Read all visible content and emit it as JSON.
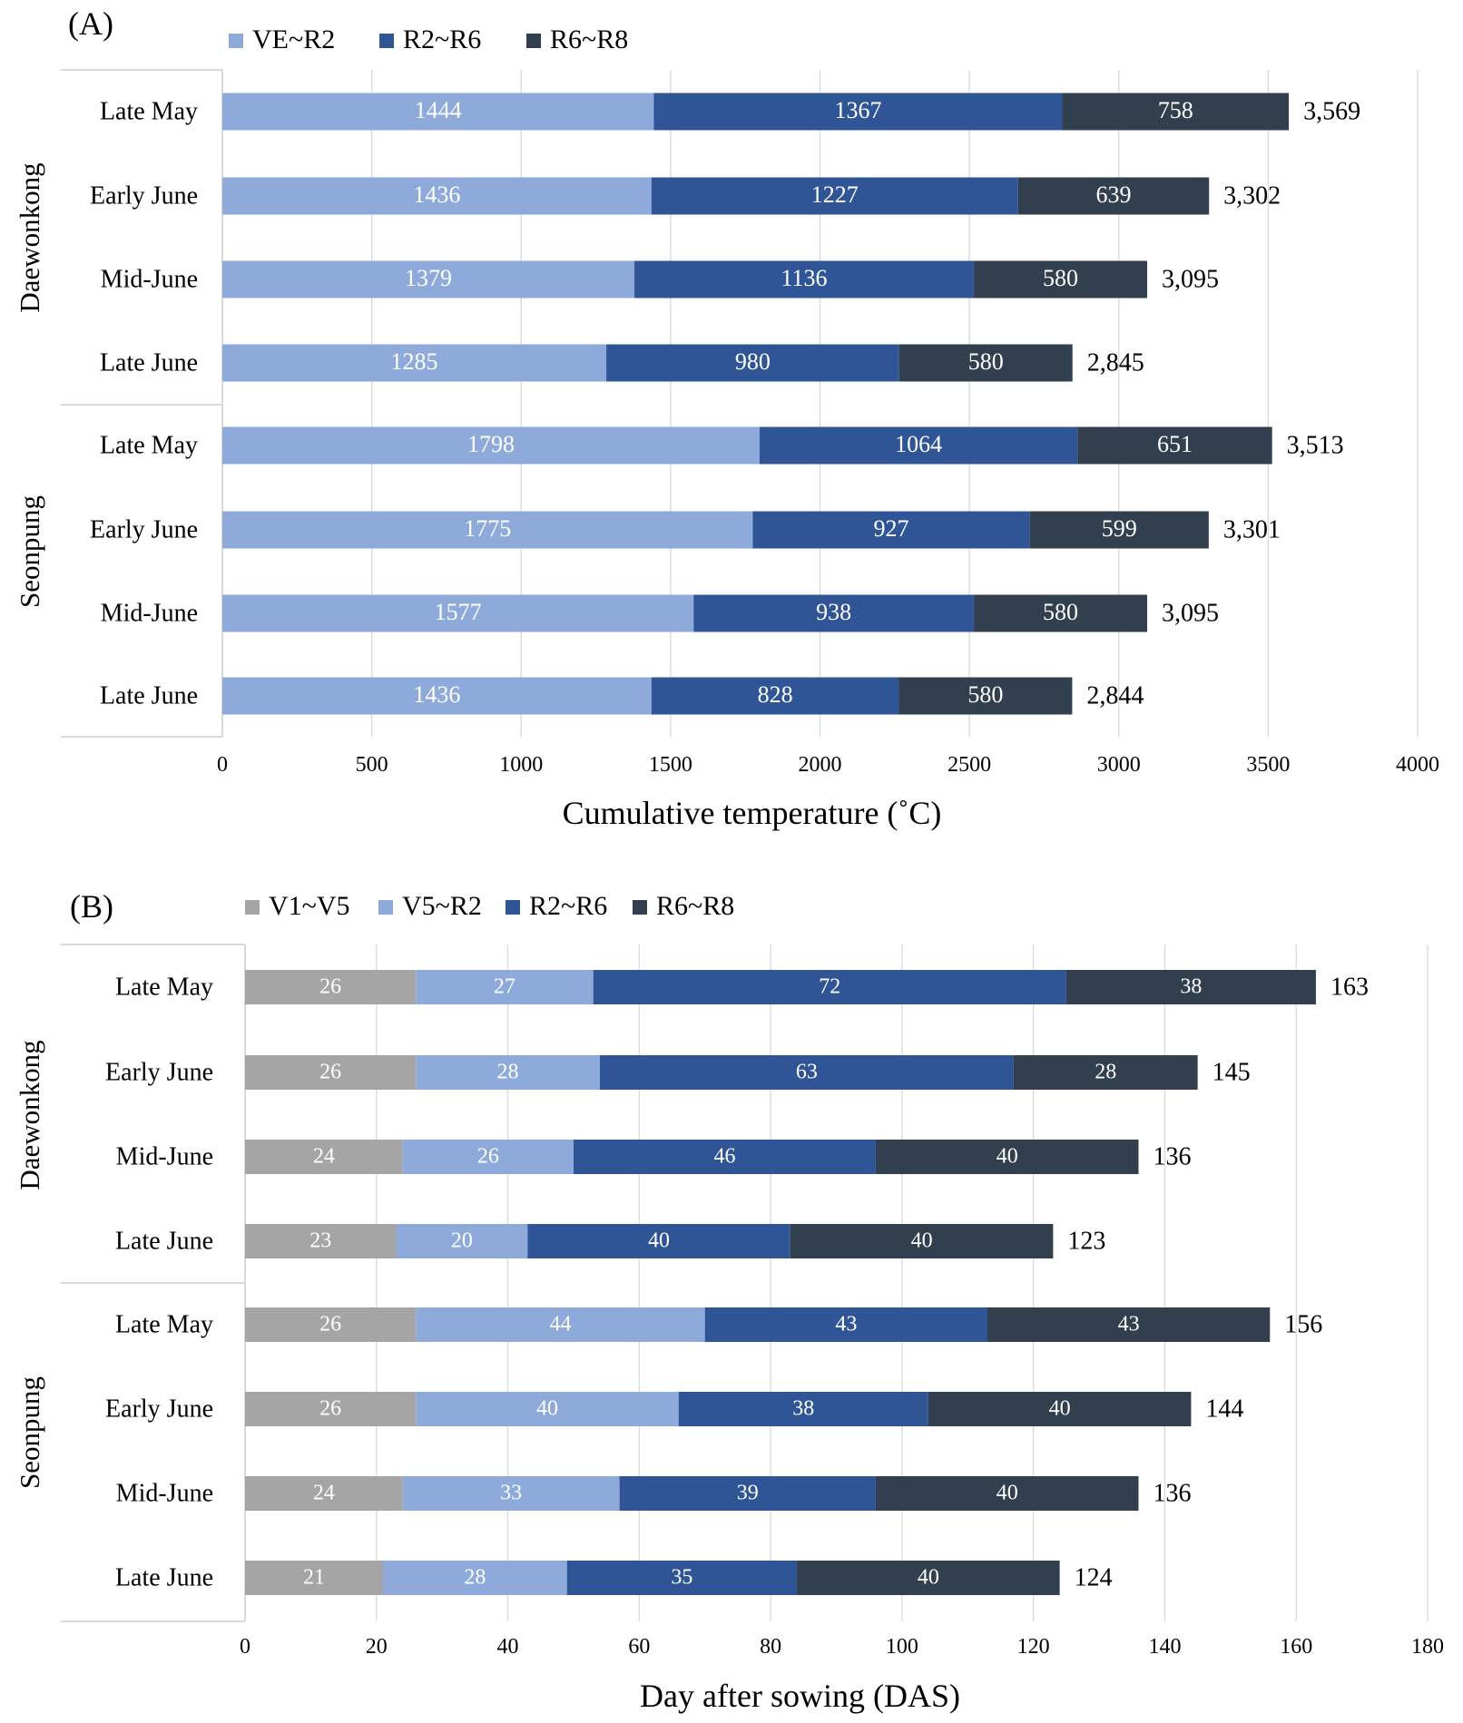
{
  "colors": {
    "VE~R2": "#8eaadb",
    "V1~V5": "#a5a5a5",
    "V5~R2": "#8eaadb",
    "R2~R6": "#2f5597",
    "R6~R8": "#323f4f",
    "grid": "#d9d9d9",
    "frame": "#d9d9d9"
  },
  "chart_data": [
    {
      "type": "bar",
      "orientation": "horizontal",
      "stacked": true,
      "panel_label": "(A)",
      "xlabel": "Cumulative temperature (˚C)",
      "xlim": [
        0,
        4000
      ],
      "x_ticks": [
        "0",
        "500",
        "1000",
        "1500",
        "2000",
        "2500",
        "3000",
        "3500",
        "4000"
      ],
      "grid": "vertical",
      "legend_position": "top-left",
      "groups": [
        {
          "name": "Daewonkong",
          "categories": [
            "Late May",
            "Early June",
            "Mid-June",
            "Late June"
          ]
        },
        {
          "name": "Seonpung",
          "categories": [
            "Late May",
            "Early June",
            "Mid-June",
            "Late June"
          ]
        }
      ],
      "series": [
        {
          "name": "VE~R2",
          "values": [
            1444,
            1436,
            1379,
            1285,
            1798,
            1775,
            1577,
            1436
          ]
        },
        {
          "name": "R2~R6",
          "values": [
            1367,
            1227,
            1136,
            980,
            1064,
            927,
            938,
            828
          ]
        },
        {
          "name": "R6~R8",
          "values": [
            758,
            639,
            580,
            580,
            651,
            599,
            580,
            580
          ]
        }
      ],
      "totals": [
        "3,569",
        "3,302",
        "3,095",
        "2,845",
        "3,513",
        "3,301",
        "3,095",
        "2,844"
      ]
    },
    {
      "type": "bar",
      "orientation": "horizontal",
      "stacked": true,
      "panel_label": "(B)",
      "xlabel": "Day after sowing (DAS)",
      "xlim": [
        0,
        180
      ],
      "x_ticks": [
        "0",
        "20",
        "40",
        "60",
        "80",
        "100",
        "120",
        "140",
        "160",
        "180"
      ],
      "grid": "vertical",
      "legend_position": "top-left",
      "groups": [
        {
          "name": "Daewonkong",
          "categories": [
            "Late May",
            "Early June",
            "Mid-June",
            "Late June"
          ]
        },
        {
          "name": "Seonpung",
          "categories": [
            "Late May",
            "Early June",
            "Mid-June",
            "Late June"
          ]
        }
      ],
      "series": [
        {
          "name": "V1~V5",
          "values": [
            26,
            26,
            24,
            23,
            26,
            26,
            24,
            21
          ]
        },
        {
          "name": "V5~R2",
          "values": [
            27,
            28,
            26,
            20,
            44,
            40,
            33,
            28
          ]
        },
        {
          "name": "R2~R6",
          "values": [
            72,
            63,
            46,
            40,
            43,
            38,
            39,
            35
          ]
        },
        {
          "name": "R6~R8",
          "values": [
            38,
            28,
            40,
            40,
            43,
            40,
            40,
            40
          ]
        }
      ],
      "totals": [
        "163",
        "145",
        "136",
        "123",
        "156",
        "144",
        "136",
        "124"
      ]
    }
  ]
}
